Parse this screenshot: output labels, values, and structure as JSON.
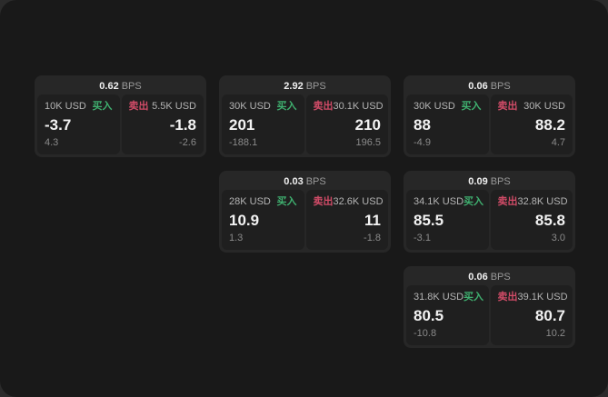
{
  "colors": {
    "buy": "#3faf6f",
    "sell": "#d04b67",
    "app_background": "#191919",
    "card_background": "#272727",
    "panel_background": "#1f1f1f"
  },
  "labels": {
    "buy": "买入",
    "sell": "卖出",
    "bps": "BPS"
  },
  "cards": [
    {
      "row": 0,
      "col": 0,
      "bps": "0.62",
      "buy": {
        "size": "10K USD",
        "value": "-3.7",
        "sub": "4.3"
      },
      "sell": {
        "size": "5.5K USD",
        "value": "-1.8",
        "sub": "-2.6"
      }
    },
    {
      "row": 0,
      "col": 1,
      "bps": "2.92",
      "buy": {
        "size": "30K USD",
        "value": "201",
        "sub": "-188.1"
      },
      "sell": {
        "size": "30.1K USD",
        "value": "210",
        "sub": "196.5"
      }
    },
    {
      "row": 0,
      "col": 2,
      "bps": "0.06",
      "buy": {
        "size": "30K USD",
        "value": "88",
        "sub": "-4.9"
      },
      "sell": {
        "size": "30K USD",
        "value": "88.2",
        "sub": "4.7"
      }
    },
    {
      "row": 1,
      "col": 1,
      "bps": "0.03",
      "buy": {
        "size": "28K USD",
        "value": "10.9",
        "sub": "1.3"
      },
      "sell": {
        "size": "32.6K USD",
        "value": "11",
        "sub": "-1.8"
      }
    },
    {
      "row": 1,
      "col": 2,
      "bps": "0.09",
      "buy": {
        "size": "34.1K USD",
        "value": "85.5",
        "sub": "-3.1"
      },
      "sell": {
        "size": "32.8K USD",
        "value": "85.8",
        "sub": "3.0"
      }
    },
    {
      "row": 2,
      "col": 2,
      "bps": "0.06",
      "buy": {
        "size": "31.8K USD",
        "value": "80.5",
        "sub": "-10.8"
      },
      "sell": {
        "size": "39.1K USD",
        "value": "80.7",
        "sub": "10.2"
      }
    }
  ]
}
